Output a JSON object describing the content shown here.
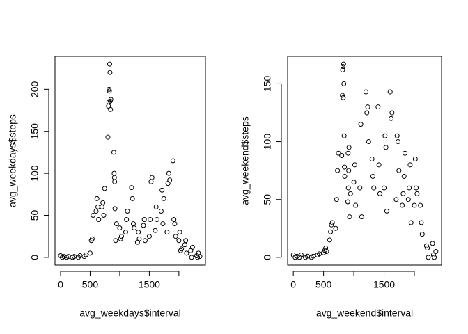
{
  "chart_data": [
    {
      "type": "scatter",
      "xlabel": "avg_weekdays$interval",
      "ylabel": "avg_weekdays$steps",
      "xlim": [
        -94,
        2449
      ],
      "xticks": [
        0,
        500,
        {
          "value": 1000,
          "label": null
        },
        1500,
        {
          "value": 2000,
          "label": null
        }
      ],
      "ylim": [
        -9.2,
        239.2
      ],
      "yticks": [
        0,
        50,
        100,
        150,
        200
      ],
      "grid": false,
      "color": "#000000",
      "x": [
        0,
        30,
        60,
        100,
        130,
        200,
        230,
        300,
        330,
        400,
        430,
        500,
        520,
        535,
        550,
        600,
        615,
        630,
        645,
        700,
        715,
        730,
        745,
        800,
        810,
        815,
        820,
        825,
        830,
        835,
        840,
        845,
        850,
        900,
        905,
        910,
        915,
        920,
        930,
        945,
        1000,
        1015,
        1030,
        1100,
        1115,
        1130,
        1200,
        1215,
        1230,
        1245,
        1300,
        1315,
        1330,
        1400,
        1415,
        1430,
        1500,
        1515,
        1530,
        1545,
        1600,
        1615,
        1630,
        1700,
        1715,
        1730,
        1745,
        1800,
        1815,
        1830,
        1845,
        1900,
        1915,
        1930,
        1945,
        2000,
        2015,
        2030,
        2045,
        2100,
        2115,
        2130,
        2200,
        2215,
        2230,
        2300,
        2315,
        2330,
        2355
      ],
      "values": [
        2,
        0,
        1,
        0,
        1,
        0,
        1,
        0,
        2,
        1,
        3,
        5,
        20,
        22,
        50,
        55,
        70,
        60,
        45,
        60,
        65,
        50,
        82,
        143,
        180,
        185,
        200,
        198,
        230,
        220,
        186,
        176,
        188,
        125,
        100,
        95,
        90,
        58,
        20,
        40,
        35,
        22,
        25,
        30,
        45,
        55,
        83,
        70,
        40,
        35,
        18,
        30,
        22,
        38,
        45,
        20,
        25,
        45,
        90,
        95,
        32,
        60,
        45,
        55,
        80,
        40,
        70,
        30,
        88,
        100,
        92,
        115,
        45,
        40,
        25,
        20,
        30,
        8,
        10,
        15,
        20,
        5,
        8,
        0,
        12,
        2,
        0,
        5,
        1
      ]
    },
    {
      "type": "scatter",
      "xlabel": "avg_weekend$interval",
      "ylabel": "avg_weekend$steps",
      "xlim": [
        -94,
        2449
      ],
      "xticks": [
        0,
        500,
        {
          "value": 1000,
          "label": null
        },
        1500,
        {
          "value": 2000,
          "label": null
        }
      ],
      "ylim": [
        -6.7,
        173.7
      ],
      "yticks": [
        0,
        50,
        100,
        150
      ],
      "grid": false,
      "color": "#000000",
      "x": [
        0,
        30,
        60,
        100,
        130,
        200,
        230,
        300,
        330,
        400,
        430,
        500,
        520,
        535,
        550,
        600,
        615,
        630,
        645,
        700,
        715,
        730,
        745,
        800,
        810,
        815,
        820,
        825,
        830,
        835,
        840,
        845,
        850,
        900,
        905,
        910,
        915,
        920,
        930,
        945,
        1000,
        1015,
        1030,
        1100,
        1115,
        1130,
        1200,
        1215,
        1230,
        1245,
        1300,
        1315,
        1330,
        1400,
        1415,
        1430,
        1500,
        1515,
        1530,
        1545,
        1600,
        1615,
        1630,
        1700,
        1715,
        1730,
        1745,
        1800,
        1815,
        1830,
        1845,
        1900,
        1915,
        1930,
        1945,
        2000,
        2015,
        2030,
        2045,
        2100,
        2115,
        2130,
        2200,
        2215,
        2230,
        2300,
        2315,
        2330,
        2355
      ],
      "values": [
        2,
        0,
        1,
        0,
        2,
        0,
        1,
        0,
        1,
        2,
        3,
        4,
        6,
        8,
        5,
        15,
        22,
        28,
        30,
        25,
        50,
        75,
        90,
        88,
        140,
        162,
        165,
        138,
        167,
        150,
        105,
        78,
        70,
        48,
        90,
        60,
        75,
        95,
        35,
        55,
        65,
        80,
        45,
        60,
        115,
        35,
        143,
        125,
        130,
        100,
        85,
        70,
        60,
        130,
        80,
        55,
        60,
        105,
        95,
        40,
        143,
        120,
        125,
        50,
        105,
        100,
        75,
        45,
        55,
        70,
        90,
        50,
        60,
        80,
        30,
        45,
        85,
        60,
        55,
        45,
        30,
        20,
        10,
        8,
        0,
        12,
        2,
        0,
        5
      ]
    }
  ]
}
